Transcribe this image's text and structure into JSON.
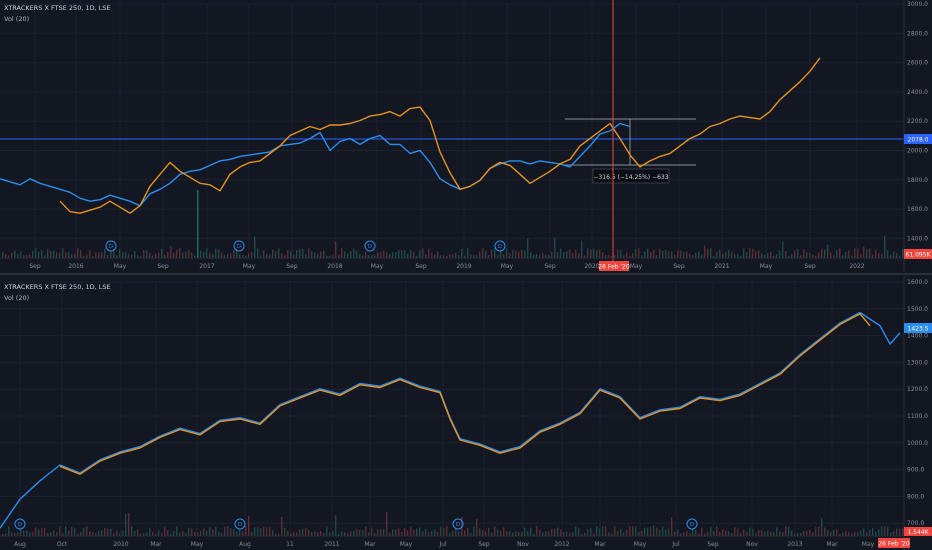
{
  "panels": [
    {
      "title": "XTRACKERS X FTSE 250, 1D, LSE",
      "vol_label": "Vol (20)",
      "y_ticks": [
        "3000.0",
        "2800.0",
        "2600.0",
        "2400.0",
        "2200.0",
        "2000.0",
        "1800.0",
        "1600.0",
        "1400.0"
      ],
      "x_ticks": [
        "Sep",
        "2016",
        "May",
        "Sep",
        "2017",
        "May",
        "Sep",
        "2018",
        "May",
        "Sep",
        "2019",
        "May",
        "Sep",
        "2020",
        "May",
        "Sep",
        "2021",
        "May",
        "Sep",
        "2022"
      ],
      "price_badge": "2078.0",
      "vol_badge": "61.095K",
      "date_badge": "26 Feb '20",
      "measure_label": "−316.5 (−14.25%) −633",
      "div_marker": "D",
      "colors": {
        "blue": "#2a8ef0",
        "orange": "#e6931f",
        "crosshair": "#f0453e",
        "badge_blue": "#2962ff"
      }
    },
    {
      "title": "XTRACKERS X FTSE 250, 1D, LSE",
      "vol_label": "Vol (20)",
      "y_ticks": [
        "1600.0",
        "1500.0",
        "1400.0",
        "1300.0",
        "1200.0",
        "1100.0",
        "1000.0",
        "900.0",
        "800.0",
        "700.0"
      ],
      "x_ticks": [
        "Aug",
        "Oct",
        "2010",
        "Mar",
        "May",
        "Aug",
        "11",
        "2011",
        "Mar",
        "May",
        "Jul",
        "Sep",
        "Nov",
        "2012",
        "Mar",
        "May",
        "Jul",
        "Sep",
        "Nov",
        "2013",
        "Mar",
        "May"
      ],
      "price_badge": "1423.5",
      "vol_badge": "1.544K",
      "date_badge": "26 Feb '20",
      "div_marker": "D"
    }
  ],
  "chart_data": [
    {
      "type": "line",
      "ylim": [
        1300,
        3000
      ],
      "series": [
        {
          "color": "blue",
          "x": [
            0,
            10,
            20,
            30,
            40,
            50,
            60,
            70,
            80,
            90,
            100,
            110,
            120,
            130,
            140,
            150,
            160,
            170,
            180,
            190,
            200,
            210,
            220,
            230,
            240,
            250,
            260,
            270,
            280,
            290,
            300,
            310,
            320,
            330,
            340,
            350,
            360,
            370,
            380,
            390,
            400,
            410,
            420,
            430,
            440,
            450,
            460,
            470,
            480,
            490,
            500,
            510,
            520,
            530,
            540,
            550,
            560,
            570,
            580,
            590,
            600,
            610,
            620,
            630
          ],
          "y": [
            1830,
            1810,
            1790,
            1830,
            1800,
            1780,
            1760,
            1740,
            1700,
            1680,
            1690,
            1720,
            1700,
            1680,
            1650,
            1730,
            1760,
            1800,
            1860,
            1880,
            1890,
            1920,
            1950,
            1960,
            1980,
            1990,
            2000,
            2010,
            2050,
            2060,
            2070,
            2100,
            2140,
            2020,
            2080,
            2100,
            2060,
            2100,
            2120,
            2060,
            2060,
            2000,
            2020,
            1940,
            1830,
            1790,
            1760,
            1780,
            1820,
            1900,
            1930,
            1950,
            1950,
            1930,
            1950,
            1940,
            1930,
            1910,
            1980,
            2050,
            2130,
            2150,
            2200,
            2180
          ]
        },
        {
          "color": "orange",
          "x": [
            60,
            70,
            80,
            90,
            100,
            110,
            120,
            130,
            140,
            150,
            160,
            170,
            180,
            190,
            200,
            210,
            220,
            230,
            240,
            250,
            260,
            270,
            280,
            290,
            300,
            310,
            320,
            330,
            340,
            350,
            360,
            370,
            380,
            390,
            400,
            410,
            420,
            430,
            440,
            450,
            460,
            470,
            480,
            490,
            500,
            510,
            520,
            530,
            540,
            550,
            560,
            570,
            580,
            590,
            600,
            610,
            620,
            630,
            640,
            650,
            660,
            670,
            680,
            690,
            700,
            710,
            720,
            730,
            740,
            750,
            760,
            770,
            780,
            790,
            800,
            810,
            820
          ],
          "y": [
            1680,
            1610,
            1600,
            1620,
            1640,
            1680,
            1640,
            1600,
            1650,
            1780,
            1860,
            1940,
            1880,
            1840,
            1800,
            1790,
            1750,
            1860,
            1910,
            1940,
            1950,
            2000,
            2050,
            2120,
            2150,
            2180,
            2160,
            2190,
            2190,
            2200,
            2220,
            2250,
            2260,
            2280,
            2250,
            2300,
            2310,
            2220,
            2010,
            1870,
            1760,
            1780,
            1820,
            1900,
            1940,
            1920,
            1860,
            1800,
            1840,
            1880,
            1930,
            1960,
            2050,
            2100,
            2150,
            2200,
            2100,
            1990,
            1910,
            1950,
            1980,
            2000,
            2050,
            2100,
            2130,
            2180,
            2200,
            2230,
            2250,
            2240,
            2230,
            2280,
            2360,
            2420,
            2480,
            2550,
            2640
          ]
        }
      ]
    },
    {
      "type": "line",
      "ylim": [
        650,
        1620
      ],
      "series": [
        {
          "color": "blue",
          "x": [
            0,
            20,
            40,
            60,
            80,
            100,
            120,
            140,
            160,
            180,
            200,
            220,
            240,
            260,
            280,
            300,
            320,
            340,
            360,
            380,
            400,
            420,
            440,
            450,
            460,
            480,
            500,
            520,
            540,
            560,
            580,
            600,
            620,
            640,
            660,
            680,
            700,
            720,
            740,
            760,
            780,
            800,
            820,
            840,
            860,
            880,
            890,
            900
          ],
          "y": [
            680,
            790,
            860,
            920,
            890,
            940,
            970,
            990,
            1030,
            1060,
            1040,
            1090,
            1100,
            1080,
            1150,
            1180,
            1210,
            1190,
            1230,
            1220,
            1250,
            1220,
            1200,
            1100,
            1020,
            1000,
            970,
            990,
            1050,
            1080,
            1120,
            1210,
            1180,
            1100,
            1130,
            1140,
            1180,
            1170,
            1190,
            1230,
            1270,
            1340,
            1400,
            1460,
            1500,
            1450,
            1380,
            1423
          ]
        },
        {
          "color": "orange",
          "x": [
            60,
            80,
            100,
            120,
            140,
            160,
            180,
            200,
            220,
            240,
            260,
            280,
            300,
            320,
            340,
            360,
            380,
            400,
            420,
            440,
            450,
            460,
            480,
            500,
            520,
            540,
            560,
            580,
            600,
            620,
            640,
            660,
            680,
            700,
            720,
            740,
            760,
            780,
            800,
            820,
            840,
            860,
            870
          ],
          "y": [
            915,
            885,
            935,
            965,
            985,
            1025,
            1055,
            1035,
            1085,
            1095,
            1075,
            1145,
            1175,
            1205,
            1185,
            1225,
            1215,
            1245,
            1215,
            1195,
            1095,
            1015,
            995,
            965,
            985,
            1045,
            1075,
            1115,
            1205,
            1175,
            1095,
            1125,
            1135,
            1175,
            1165,
            1185,
            1225,
            1265,
            1335,
            1395,
            1455,
            1495,
            1450
          ]
        }
      ]
    }
  ]
}
